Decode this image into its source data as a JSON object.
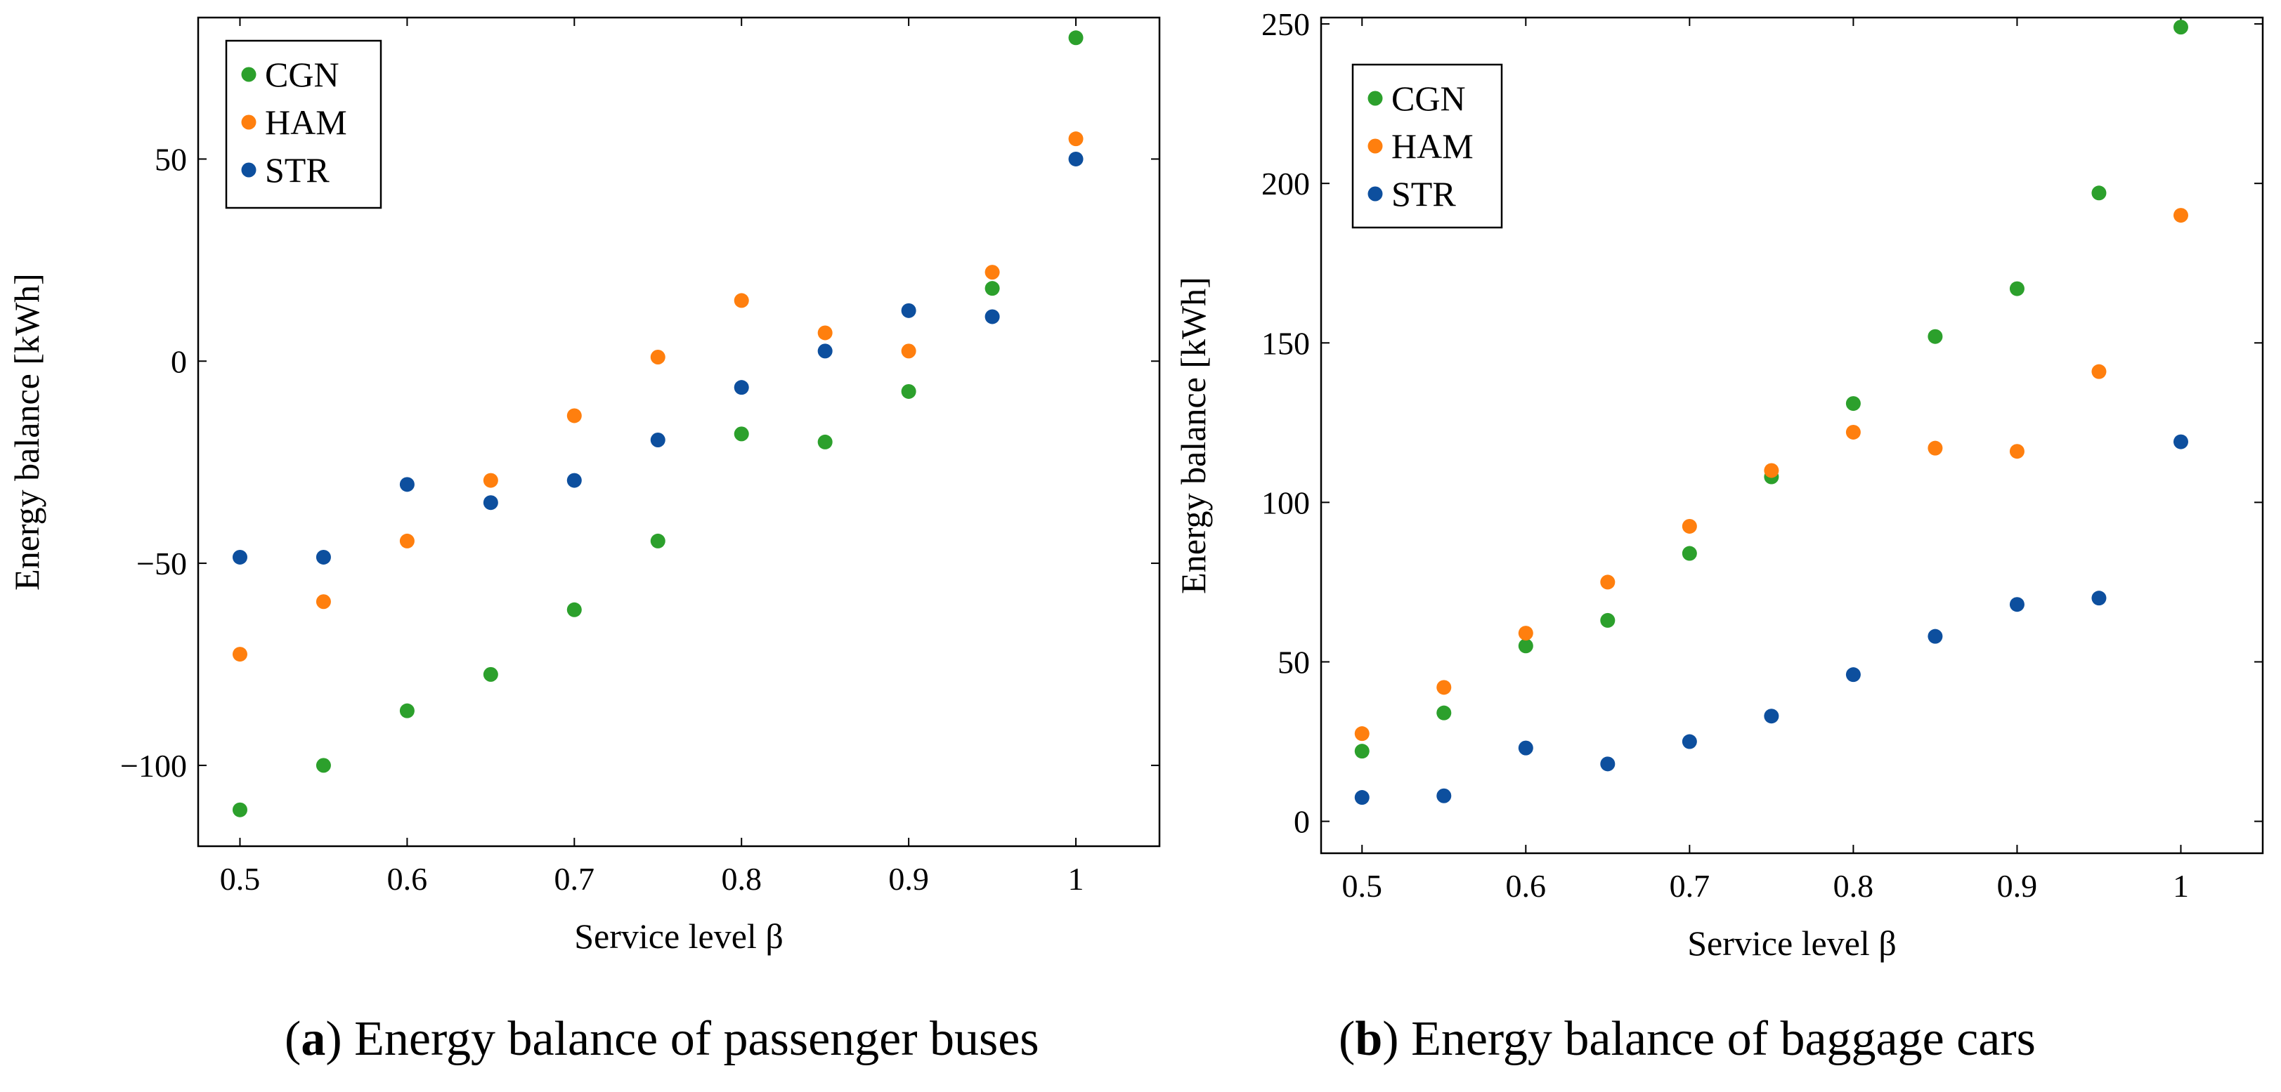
{
  "chart_data": [
    {
      "type": "scatter",
      "xlabel": "Service level β",
      "ylabel": "Energy balance [kWh]",
      "xlim": [
        0.475,
        1.05
      ],
      "ylim": [
        -120,
        85
      ],
      "xticks": [
        0.5,
        0.6,
        0.7,
        0.8,
        0.9,
        1
      ],
      "xtick_labels": [
        "0.5",
        "0.6",
        "0.7",
        "0.8",
        "0.9",
        "1"
      ],
      "yticks": [
        -100,
        -50,
        0,
        50
      ],
      "ytick_labels": [
        "−100",
        "−50",
        "0",
        "50"
      ],
      "grid": false,
      "legend": "top-left",
      "x": [
        0.5,
        0.55,
        0.6,
        0.65,
        0.7,
        0.75,
        0.8,
        0.85,
        0.9,
        0.95,
        1.0
      ],
      "series": [
        {
          "name": "CGN",
          "color": "#2ca02c",
          "values": [
            -111,
            -100,
            -86.5,
            -77.5,
            -61.5,
            -44.5,
            -18,
            -20,
            -7.5,
            18,
            80
          ]
        },
        {
          "name": "HAM",
          "color": "#ff7f0e",
          "values": [
            -72.5,
            -59.5,
            -44.5,
            -29.5,
            -13.5,
            1,
            15,
            7,
            2.5,
            22,
            55
          ]
        },
        {
          "name": "STR",
          "color": "#0d4f9e",
          "values": [
            -48.5,
            -48.5,
            -30.5,
            -35,
            -29.5,
            -19.5,
            -6.5,
            2.5,
            12.5,
            11,
            50
          ]
        }
      ]
    },
    {
      "type": "scatter",
      "xlabel": "Service level β",
      "ylabel": "Energy balance [kWh]",
      "xlim": [
        0.475,
        1.05
      ],
      "ylim": [
        -10,
        252
      ],
      "xticks": [
        0.5,
        0.6,
        0.7,
        0.8,
        0.9,
        1
      ],
      "xtick_labels": [
        "0.5",
        "0.6",
        "0.7",
        "0.8",
        "0.9",
        "1"
      ],
      "yticks": [
        0,
        50,
        100,
        150,
        200,
        250
      ],
      "ytick_labels": [
        "0",
        "50",
        "100",
        "150",
        "200",
        "250"
      ],
      "grid": false,
      "legend": "top-left",
      "x": [
        0.5,
        0.55,
        0.6,
        0.65,
        0.7,
        0.75,
        0.8,
        0.85,
        0.9,
        0.95,
        1.0
      ],
      "series": [
        {
          "name": "CGN",
          "color": "#2ca02c",
          "values": [
            22,
            34,
            55,
            63,
            84,
            108,
            131,
            152,
            167,
            197,
            249
          ]
        },
        {
          "name": "HAM",
          "color": "#ff7f0e",
          "values": [
            27.5,
            42,
            59,
            75,
            92.5,
            110,
            122,
            117,
            116,
            141,
            190
          ]
        },
        {
          "name": "STR",
          "color": "#0d4f9e",
          "values": [
            7.5,
            8,
            23,
            18,
            25,
            33,
            46,
            58,
            68,
            70,
            119
          ]
        }
      ]
    }
  ],
  "captions": [
    {
      "letter": "a",
      "text": "Energy balance of passenger buses"
    },
    {
      "letter": "b",
      "text": "Energy balance of baggage cars"
    }
  ]
}
